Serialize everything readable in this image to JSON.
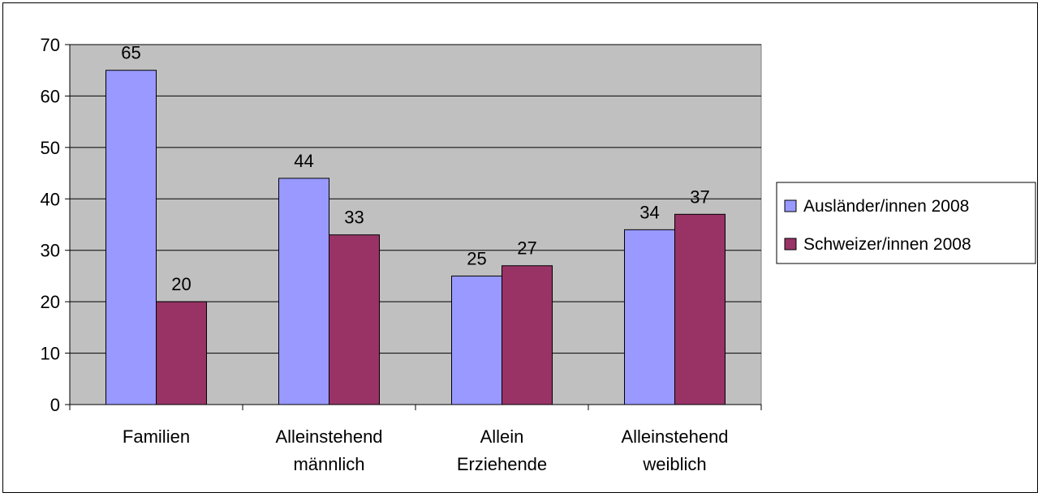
{
  "chart_data": {
    "type": "bar",
    "categories": [
      [
        "Familien"
      ],
      [
        "Alleinstehend",
        "männlich"
      ],
      [
        "Allein",
        "Erziehende"
      ],
      [
        "Alleinstehend",
        "weiblich"
      ]
    ],
    "series": [
      {
        "name": "Ausländer/innen 2008",
        "color": "#9999ff",
        "values": [
          65,
          44,
          25,
          34
        ]
      },
      {
        "name": "Schweizer/innen 2008",
        "color": "#993366",
        "values": [
          20,
          33,
          27,
          37
        ]
      }
    ],
    "yticks": [
      0,
      10,
      20,
      30,
      40,
      50,
      60,
      70
    ],
    "ylim": [
      0,
      70
    ],
    "grid": true,
    "plot_background": "#c0c0c0",
    "legend_position": "right",
    "data_labels": true
  }
}
